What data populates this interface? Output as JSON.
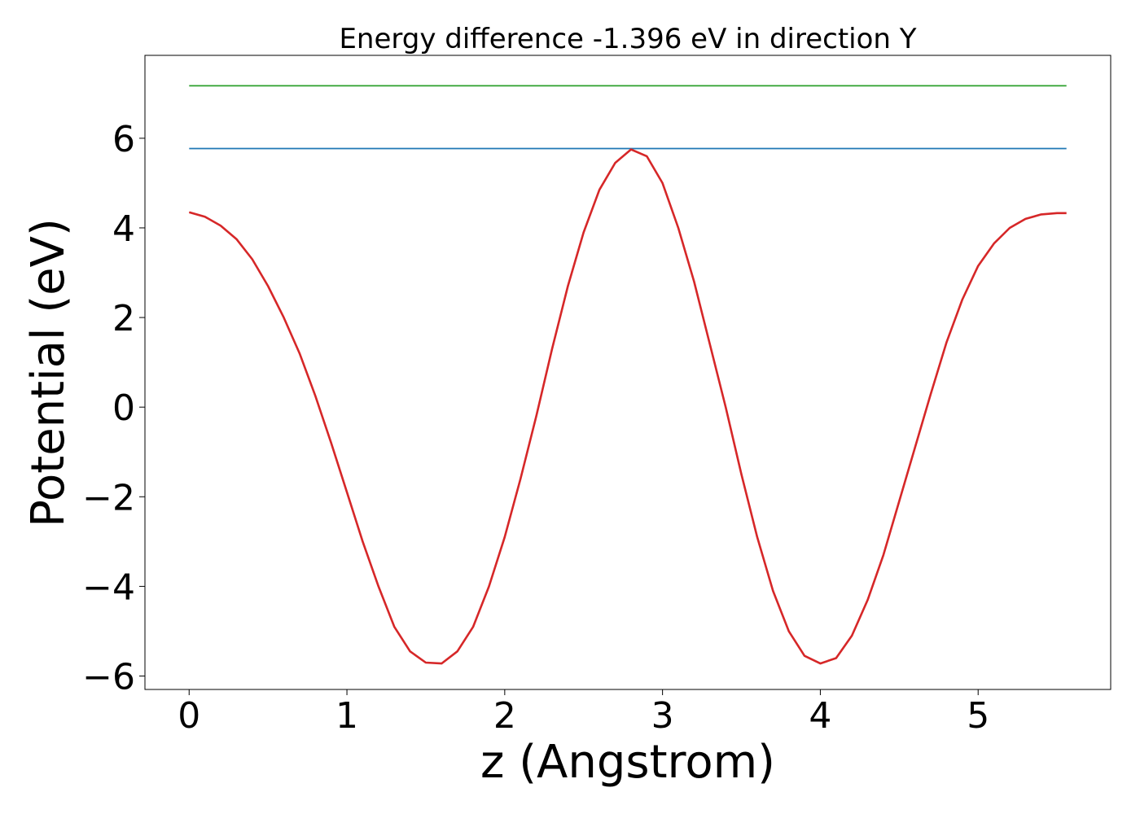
{
  "chart_data": {
    "type": "line",
    "title": "Energy difference -1.396 eV in direction Y",
    "xlabel": "z (Angstrom)",
    "ylabel": "Potential (eV)",
    "xlim": [
      -0.28,
      5.84
    ],
    "ylim": [
      -6.3,
      7.85
    ],
    "xticks": [
      0,
      1,
      2,
      3,
      4,
      5
    ],
    "xtick_labels": [
      "0",
      "1",
      "2",
      "3",
      "4",
      "5"
    ],
    "yticks": [
      -6,
      -4,
      -2,
      0,
      2,
      4,
      6
    ],
    "ytick_labels": [
      "−6",
      "−4",
      "−2",
      "0",
      "2",
      "4",
      "6"
    ],
    "grid": false,
    "series": [
      {
        "color": "#2ca02c",
        "x": [
          0,
          5.56
        ],
        "y": [
          7.17,
          7.17
        ]
      },
      {
        "color": "#1f77b4",
        "x": [
          0,
          5.56
        ],
        "y": [
          5.77,
          5.77
        ]
      },
      {
        "color": "#d62728",
        "x": [
          0,
          0.1,
          0.2,
          0.3,
          0.4,
          0.5,
          0.6,
          0.7,
          0.8,
          0.9,
          1.0,
          1.1,
          1.2,
          1.3,
          1.4,
          1.5,
          1.6,
          1.7,
          1.8,
          1.9,
          2.0,
          2.1,
          2.2,
          2.3,
          2.4,
          2.5,
          2.6,
          2.7,
          2.8,
          2.9,
          3.0,
          3.1,
          3.2,
          3.3,
          3.4,
          3.5,
          3.6,
          3.7,
          3.8,
          3.9,
          4.0,
          4.1,
          4.2,
          4.3,
          4.4,
          4.5,
          4.6,
          4.7,
          4.8,
          4.9,
          5.0,
          5.1,
          5.2,
          5.3,
          5.4,
          5.5,
          5.56
        ],
        "y": [
          4.35,
          4.25,
          4.05,
          3.75,
          3.3,
          2.7,
          2.0,
          1.2,
          0.25,
          -0.8,
          -1.9,
          -3.0,
          -4.0,
          -4.9,
          -5.45,
          -5.7,
          -5.72,
          -5.45,
          -4.9,
          -4.0,
          -2.9,
          -1.6,
          -0.2,
          1.3,
          2.7,
          3.9,
          4.85,
          5.45,
          5.75,
          5.6,
          5.0,
          4.0,
          2.8,
          1.4,
          0.0,
          -1.5,
          -2.9,
          -4.1,
          -5.0,
          -5.55,
          -5.72,
          -5.6,
          -5.1,
          -4.3,
          -3.3,
          -2.1,
          -0.9,
          0.3,
          1.45,
          2.4,
          3.15,
          3.65,
          4.0,
          4.2,
          4.3,
          4.33,
          4.33
        ]
      }
    ]
  }
}
